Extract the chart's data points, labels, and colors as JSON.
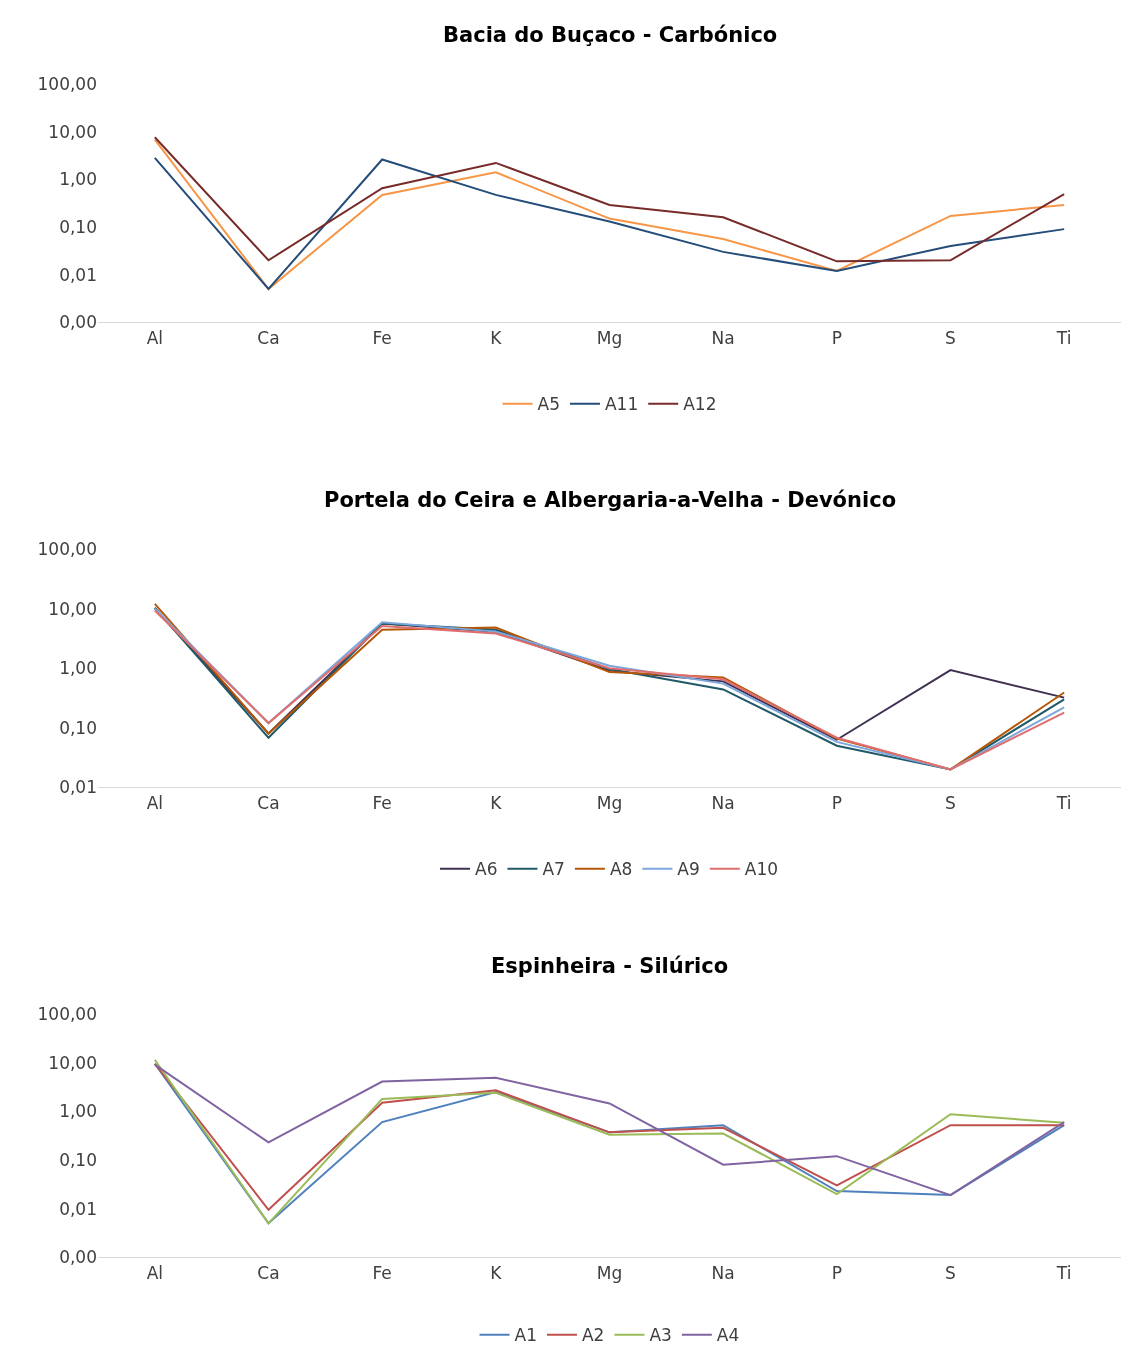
{
  "chart_data": [
    {
      "type": "line",
      "title": "Bacia do Buçaco - Carbónico",
      "categories": [
        "Al",
        "Ca",
        "Fe",
        "K",
        "Mg",
        "Na",
        "P",
        "S",
        "Ti"
      ],
      "log": true,
      "ylim": [
        0.001,
        100
      ],
      "yticks": [
        {
          "value": 0.001,
          "label": "0,00"
        },
        {
          "value": 0.01,
          "label": "0,01"
        },
        {
          "value": 0.1,
          "label": "0,10"
        },
        {
          "value": 1,
          "label": "1,00"
        },
        {
          "value": 10,
          "label": "10,00"
        },
        {
          "value": 100,
          "label": "100,00"
        }
      ],
      "grid": false,
      "legend": "bottom",
      "series": [
        {
          "name": "A5",
          "color": "#f79646",
          "values": [
            6.8,
            0.005,
            0.47,
            1.4,
            0.15,
            0.056,
            0.012,
            0.17,
            0.29
          ]
        },
        {
          "name": "A11",
          "color": "#254d7a",
          "values": [
            2.8,
            0.005,
            2.6,
            0.47,
            0.13,
            0.03,
            0.012,
            0.04,
            0.09
          ]
        },
        {
          "name": "A12",
          "color": "#772c2a",
          "values": [
            7.6,
            0.02,
            0.65,
            2.2,
            0.29,
            0.16,
            0.019,
            0.02,
            0.49
          ]
        }
      ]
    },
    {
      "type": "line",
      "title": "Portela do Ceira e Albergaria-a-Velha - Devónico",
      "categories": [
        "Al",
        "Ca",
        "Fe",
        "K",
        "Mg",
        "Na",
        "P",
        "S",
        "Ti"
      ],
      "log": true,
      "ylim": [
        0.01,
        100
      ],
      "yticks": [
        {
          "value": 0.01,
          "label": "0,01"
        },
        {
          "value": 0.1,
          "label": "0,10"
        },
        {
          "value": 1,
          "label": "1,00"
        },
        {
          "value": 10,
          "label": "10,00"
        },
        {
          "value": 100,
          "label": "100,00"
        }
      ],
      "grid": false,
      "legend": "bottom",
      "series": [
        {
          "name": "A6",
          "color": "#403152",
          "values": [
            10,
            0.08,
            5.6,
            4.1,
            0.9,
            0.6,
            0.063,
            0.93,
            0.32
          ]
        },
        {
          "name": "A7",
          "color": "#215968",
          "values": [
            10.3,
            0.068,
            5.6,
            4.4,
            0.97,
            0.44,
            0.05,
            0.02,
            0.3
          ]
        },
        {
          "name": "A8",
          "color": "#b65708",
          "values": [
            12,
            0.08,
            4.4,
            4.8,
            0.86,
            0.7,
            0.066,
            0.02,
            0.39
          ]
        },
        {
          "name": "A9",
          "color": "#7ba7dc",
          "values": [
            10,
            0.12,
            5.9,
            4.1,
            1.1,
            0.55,
            0.058,
            0.02,
            0.22
          ]
        },
        {
          "name": "A10",
          "color": "#e06e6e",
          "values": [
            9.3,
            0.12,
            5.1,
            3.8,
            1.0,
            0.65,
            0.068,
            0.02,
            0.18
          ]
        }
      ]
    },
    {
      "type": "line",
      "title": "Espinheira - Silúrico",
      "categories": [
        "Al",
        "Ca",
        "Fe",
        "K",
        "Mg",
        "Na",
        "P",
        "S",
        "Ti"
      ],
      "log": true,
      "ylim": [
        0.001,
        100
      ],
      "yticks": [
        {
          "value": 0.001,
          "label": "0,00"
        },
        {
          "value": 0.01,
          "label": "0,01"
        },
        {
          "value": 0.1,
          "label": "0,10"
        },
        {
          "value": 1,
          "label": "1,00"
        },
        {
          "value": 10,
          "label": "10,00"
        },
        {
          "value": 100,
          "label": "100,00"
        }
      ],
      "grid": false,
      "legend": "bottom",
      "series": [
        {
          "name": "A1",
          "color": "#4f81bd",
          "values": [
            9.5,
            0.005,
            0.6,
            2.5,
            0.37,
            0.52,
            0.023,
            0.019,
            0.52
          ]
        },
        {
          "name": "A2",
          "color": "#c0504d",
          "values": [
            9.5,
            0.0095,
            1.5,
            2.7,
            0.37,
            0.46,
            0.03,
            0.52,
            0.52
          ]
        },
        {
          "name": "A3",
          "color": "#9bbb59",
          "values": [
            11.5,
            0.005,
            1.8,
            2.4,
            0.33,
            0.35,
            0.02,
            0.87,
            0.58
          ]
        },
        {
          "name": "A4",
          "color": "#8064a2",
          "values": [
            9.1,
            0.23,
            4.1,
            4.9,
            1.45,
            0.08,
            0.12,
            0.019,
            0.6
          ]
        }
      ]
    }
  ]
}
